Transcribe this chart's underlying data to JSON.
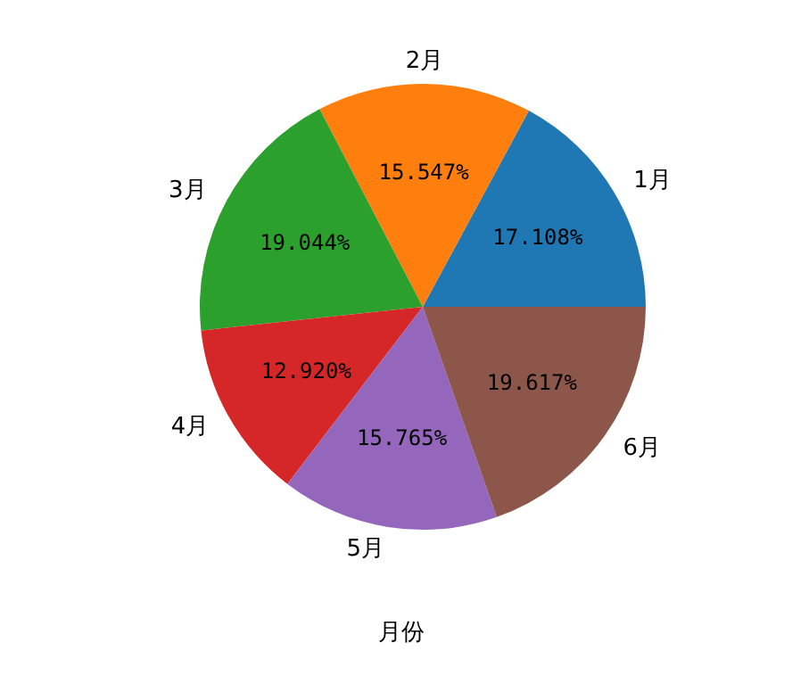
{
  "chart_data": {
    "type": "pie",
    "xlabel": "月份",
    "categories": [
      "1月",
      "2月",
      "3月",
      "4月",
      "5月",
      "6月"
    ],
    "values": [
      17.108,
      15.547,
      19.044,
      12.92,
      15.765,
      19.617
    ],
    "value_labels": [
      "17.108%",
      "15.547%",
      "19.044%",
      "12.920%",
      "15.765%",
      "19.617%"
    ],
    "colors": [
      "#1f77b4",
      "#ff7f0e",
      "#2ca02c",
      "#d62728",
      "#9467bd",
      "#8c564b"
    ]
  }
}
